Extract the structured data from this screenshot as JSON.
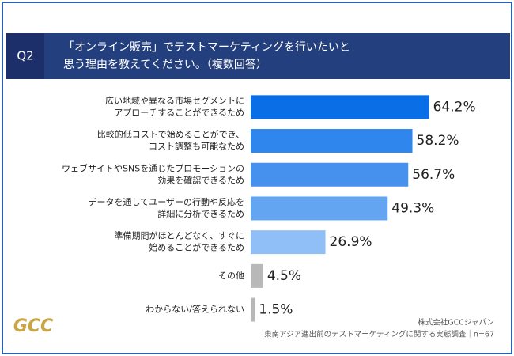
{
  "header": {
    "question": "Q2",
    "title_lines": [
      "「オンライン販売」でテストマーケティングを行いたいと",
      "思う理由を教えてください。（複数回答）"
    ]
  },
  "chart_data": {
    "type": "barh",
    "categories": [
      [
        "広い地域や異なる市場セグメントに",
        "アプローチすることができるため"
      ],
      [
        "比較的低コストで始めることができ、",
        "コスト調整も可能なため"
      ],
      [
        "ウェブサイトやSNSを通じたプロモーションの",
        "効果を確認できるため"
      ],
      [
        "データを通してユーザーの行動や反応を",
        "詳細に分析できるため"
      ],
      [
        "準備期間がほとんどなく、すぐに",
        "始めることができるため"
      ],
      [
        "その他"
      ],
      [
        "わからない/答えられない"
      ]
    ],
    "values": [
      64.2,
      58.2,
      56.7,
      49.3,
      26.9,
      4.5,
      1.5
    ],
    "value_labels": [
      "64.2%",
      "58.2%",
      "56.7%",
      "49.3%",
      "26.9%",
      "4.5%",
      "1.5%"
    ],
    "colors": [
      "#0a6fe6",
      "#2f86ec",
      "#4690ee",
      "#64a5f2",
      "#8fbff6",
      "#b8b8b8",
      "#b8b8b8"
    ],
    "xlim": [
      0,
      70
    ]
  },
  "footer": {
    "source_lines": [
      "株式会社GCCジャパン",
      "東南アジア進出前のテストマーケティングに関する実態調査｜n=67"
    ],
    "logo": "GCC"
  }
}
